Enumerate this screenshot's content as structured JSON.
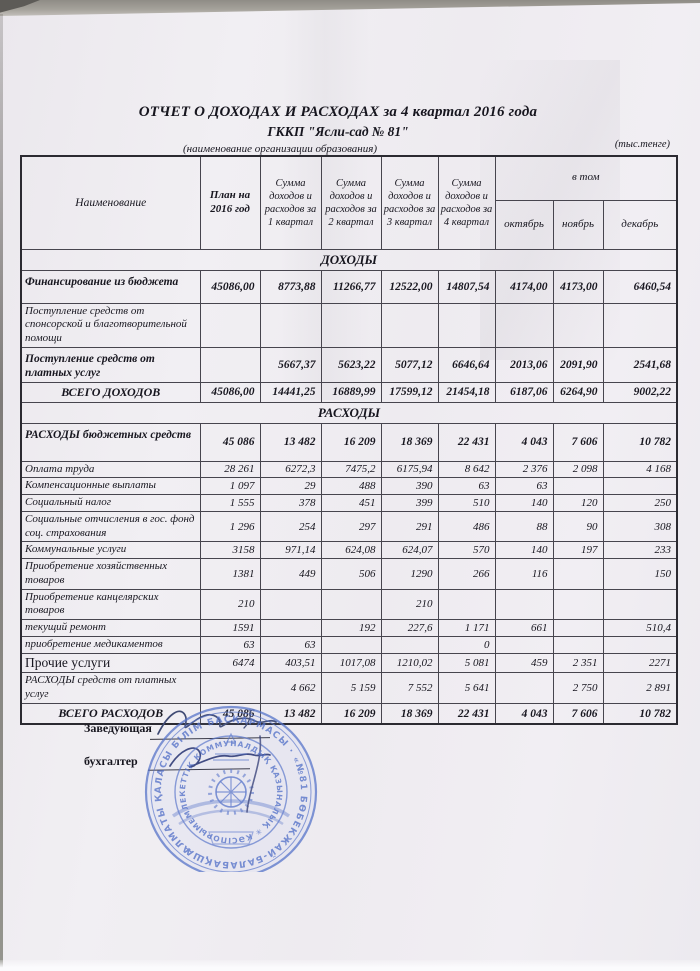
{
  "doc": {
    "title": "ОТЧЕТ О ДОХОДАХ И РАСХОДАХ за 4 квартал 2016 года",
    "subtitle": "ГККП \"Ясли-сад № 81\"",
    "org_note": "(наименование организации образования)",
    "units_note": "(тыс.тенге)"
  },
  "table": {
    "header": {
      "name": "Наименование",
      "plan": "План на 2016 год",
      "quarters": [
        "Сумма доходов и расходов за 1 квартал",
        "Сумма доходов и расходов за 2 квартал",
        "Сумма доходов и расходов за 3 квартал",
        "Сумма доходов и расходов за 4 квартал"
      ],
      "in_that": "в том",
      "months": [
        "октябрь",
        "ноябрь",
        "декабрь"
      ]
    },
    "rows": [
      {
        "band": "ДОХОДЫ"
      },
      {
        "label": "Финансирование из бюджета",
        "style": "bold",
        "cells": [
          "45086,00",
          "8773,88",
          "11266,77",
          "12522,00",
          "14807,54",
          "4174,00",
          "4173,00",
          "6460,54"
        ]
      },
      {
        "label": "Поступление средств от спонсорской и благотворительной помощи",
        "style": "",
        "cells": [
          "",
          "",
          "",
          "",
          "",
          "",
          "",
          ""
        ]
      },
      {
        "label": "Поступление средств от платных услуг",
        "style": "bold",
        "cells": [
          "",
          "5667,37",
          "5623,22",
          "5077,12",
          "6646,64",
          "2013,06",
          "2091,90",
          "2541,68"
        ]
      },
      {
        "label": "ВСЕГО ДОХОДОВ",
        "style": "total",
        "cells": [
          "45086,00",
          "14441,25",
          "16889,99",
          "17599,12",
          "21454,18",
          "6187,06",
          "6264,90",
          "9002,22"
        ]
      },
      {
        "band": "РАСХОДЫ"
      },
      {
        "label": "РАСХОДЫ бюджетных средств",
        "style": "bold",
        "cells": [
          "45 086",
          "13 482",
          "16 209",
          "18 369",
          "22 431",
          "4 043",
          "7 606",
          "10 782"
        ]
      },
      {
        "label": "Оплата труда",
        "style": "",
        "cells": [
          "28 261",
          "6272,3",
          "7475,2",
          "6175,94",
          "8 642",
          "2 376",
          "2 098",
          "4 168"
        ]
      },
      {
        "label": "Компенсационные выплаты",
        "style": "",
        "cells": [
          "1 097",
          "29",
          "488",
          "390",
          "63",
          "63",
          "",
          ""
        ]
      },
      {
        "label": "Социальный налог",
        "style": "",
        "cells": [
          "1 555",
          "378",
          "451",
          "399",
          "510",
          "140",
          "120",
          "250"
        ]
      },
      {
        "label": "Социальные отчисления в гос. фонд соц. страхования",
        "style": "",
        "cells": [
          "1 296",
          "254",
          "297",
          "291",
          "486",
          "88",
          "90",
          "308"
        ]
      },
      {
        "label": "Коммунальные услуги",
        "style": "",
        "cells": [
          "3158",
          "971,14",
          "624,08",
          "624,07",
          "570",
          "140",
          "197",
          "233"
        ]
      },
      {
        "label": "Приобретение хозяйственных товаров",
        "style": "",
        "cells": [
          "1381",
          "449",
          "506",
          "1290",
          "266",
          "116",
          "",
          "150"
        ]
      },
      {
        "label": "Приобретение канцелярских товаров",
        "style": "",
        "cells": [
          "210",
          "",
          "",
          "210",
          "",
          "",
          "",
          ""
        ]
      },
      {
        "label": "текущий ремонт",
        "style": "",
        "cells": [
          "1591",
          "",
          "192",
          "227,6",
          "1 171",
          "661",
          "",
          "510,4"
        ]
      },
      {
        "label": "приобретение медикаментов",
        "style": "",
        "cells": [
          "63",
          "63",
          "",
          "",
          "0",
          "",
          "",
          ""
        ]
      },
      {
        "label": "Прочие услуги",
        "style": "big",
        "cells": [
          "6474",
          "403,51",
          "1017,08",
          "1210,02",
          "5 081",
          "459",
          "2 351",
          "2271"
        ]
      },
      {
        "label": "РАСХОДЫ  средств от платных услуг",
        "style": "",
        "cells": [
          "",
          "4 662",
          "5 159",
          "7 552",
          "5 641",
          "",
          "2 750",
          "2 891"
        ]
      },
      {
        "label": "ВСЕГО РАСХОДОВ",
        "style": "total",
        "cells": [
          "45 086",
          "13 482",
          "16 209",
          "18 369",
          "22 431",
          "4 043",
          "7 606",
          "10 782"
        ]
      }
    ]
  },
  "footer": {
    "director_label": "Заведующая",
    "accountant_label": "бухгалтер"
  },
  "stamp": {
    "outer_text": "АЛМАТЫ ҚАЛАСЫ БІЛІМ БАСҚАРМАСЫ · «№81 БӨБЕКЖАЙ-БАЛАБАҚШАСЫ»",
    "inner_text": "МЕМЛЕКЕТТІК КОММУНАЛДЫҚ ҚАЗЫНАЛЫҚ ✳ КӘСІПОРЫНЫ ✳",
    "color": "#5673c9"
  }
}
